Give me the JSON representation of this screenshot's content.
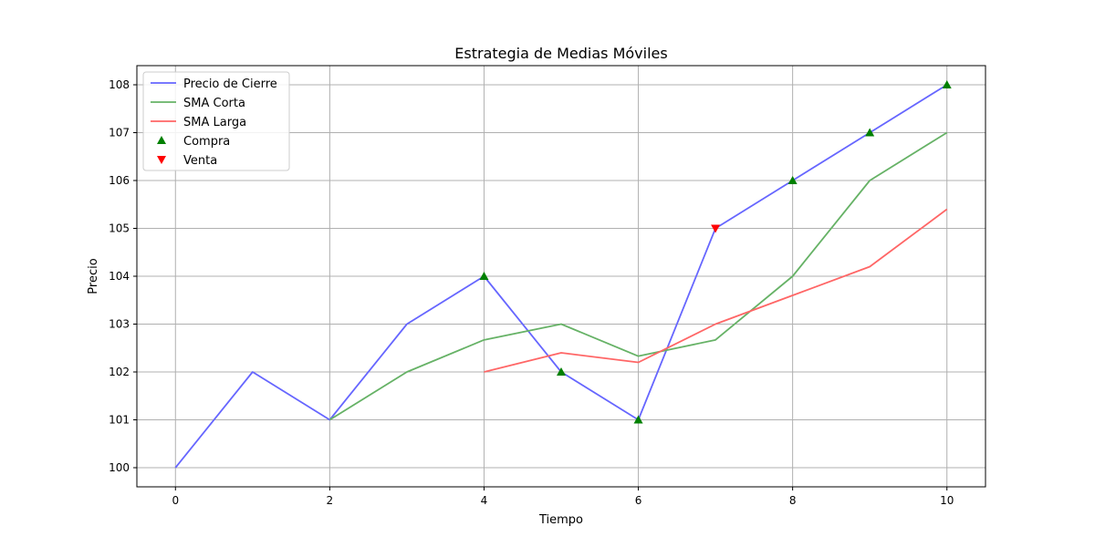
{
  "chart_data": {
    "type": "line",
    "title": "Estrategia de Medias Móviles",
    "xlabel": "Tiempo",
    "ylabel": "Precio",
    "xlim": [
      -0.5,
      10.5
    ],
    "ylim": [
      99.6,
      108.4
    ],
    "xticks": [
      0,
      2,
      4,
      6,
      8,
      10
    ],
    "yticks": [
      100,
      101,
      102,
      103,
      104,
      105,
      106,
      107,
      108
    ],
    "grid": true,
    "legend_position": "upper-left",
    "series": [
      {
        "name": "Precio de Cierre",
        "kind": "line",
        "color": "#6666ff",
        "x": [
          0,
          1,
          2,
          3,
          4,
          5,
          6,
          7,
          8,
          9,
          10
        ],
        "y": [
          100,
          102,
          101,
          103,
          104,
          102,
          101,
          105,
          106,
          107,
          108
        ]
      },
      {
        "name": "SMA Corta",
        "kind": "line",
        "color": "#66b266",
        "x": [
          2,
          3,
          4,
          5,
          6,
          7,
          8,
          9,
          10
        ],
        "y": [
          101.0,
          102.0,
          102.67,
          103.0,
          102.33,
          102.67,
          104.0,
          106.0,
          107.0
        ]
      },
      {
        "name": "SMA Larga",
        "kind": "line",
        "color": "#ff6666",
        "x": [
          4,
          5,
          6,
          7,
          8,
          9,
          10
        ],
        "y": [
          102.0,
          102.4,
          102.2,
          103.0,
          103.6,
          104.2,
          105.4
        ]
      },
      {
        "name": "Compra",
        "kind": "scatter",
        "marker": "triangle-up",
        "color": "#008000",
        "x": [
          4,
          5,
          6,
          8,
          9,
          10
        ],
        "y": [
          104,
          102,
          101,
          106,
          107,
          108
        ]
      },
      {
        "name": "Venta",
        "kind": "scatter",
        "marker": "triangle-down",
        "color": "#ff0000",
        "x": [
          7
        ],
        "y": [
          105
        ]
      }
    ]
  }
}
